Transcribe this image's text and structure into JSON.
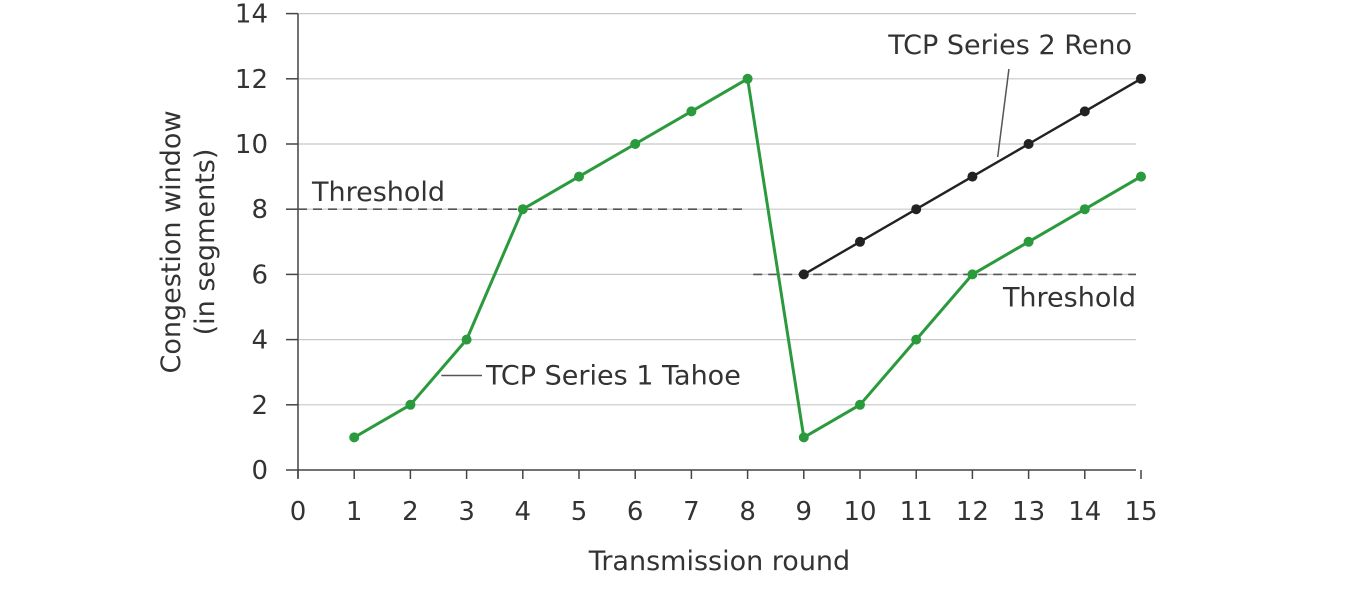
{
  "chart_data": {
    "type": "line",
    "xlabel": "Transmission round",
    "ylabel": [
      "Congestion window",
      "(in segments)"
    ],
    "xlim": [
      0,
      15
    ],
    "ylim": [
      0,
      14
    ],
    "x_ticks": [
      0,
      1,
      2,
      3,
      4,
      5,
      6,
      7,
      8,
      9,
      10,
      11,
      12,
      13,
      14,
      15
    ],
    "y_ticks": [
      0,
      2,
      4,
      6,
      8,
      10,
      12,
      14
    ],
    "grid": "horizontal",
    "series": [
      {
        "name": "TCP Series 1 Tahoe",
        "color": "#2a9a3c",
        "x": [
          1,
          2,
          3,
          4,
          5,
          6,
          7,
          8,
          9,
          10,
          11,
          12,
          13,
          14,
          15
        ],
        "values": [
          1,
          2,
          4,
          8,
          9,
          10,
          11,
          12,
          1,
          2,
          4,
          6,
          7,
          8,
          9
        ]
      },
      {
        "name": "TCP Series 2 Reno",
        "color": "#222222",
        "x": [
          9,
          10,
          11,
          12,
          13,
          14,
          15
        ],
        "values": [
          6,
          7,
          8,
          9,
          10,
          11,
          12
        ]
      }
    ],
    "thresholds": [
      {
        "label": "Threshold",
        "y": 8,
        "x_start": 0,
        "x_end": 8
      },
      {
        "label": "Threshold",
        "y": 6,
        "x_start": 8,
        "x_end": 15
      }
    ],
    "annotations": [
      {
        "text": "TCP Series 1 Tahoe"
      },
      {
        "text": "TCP Series 2 Reno"
      }
    ]
  }
}
